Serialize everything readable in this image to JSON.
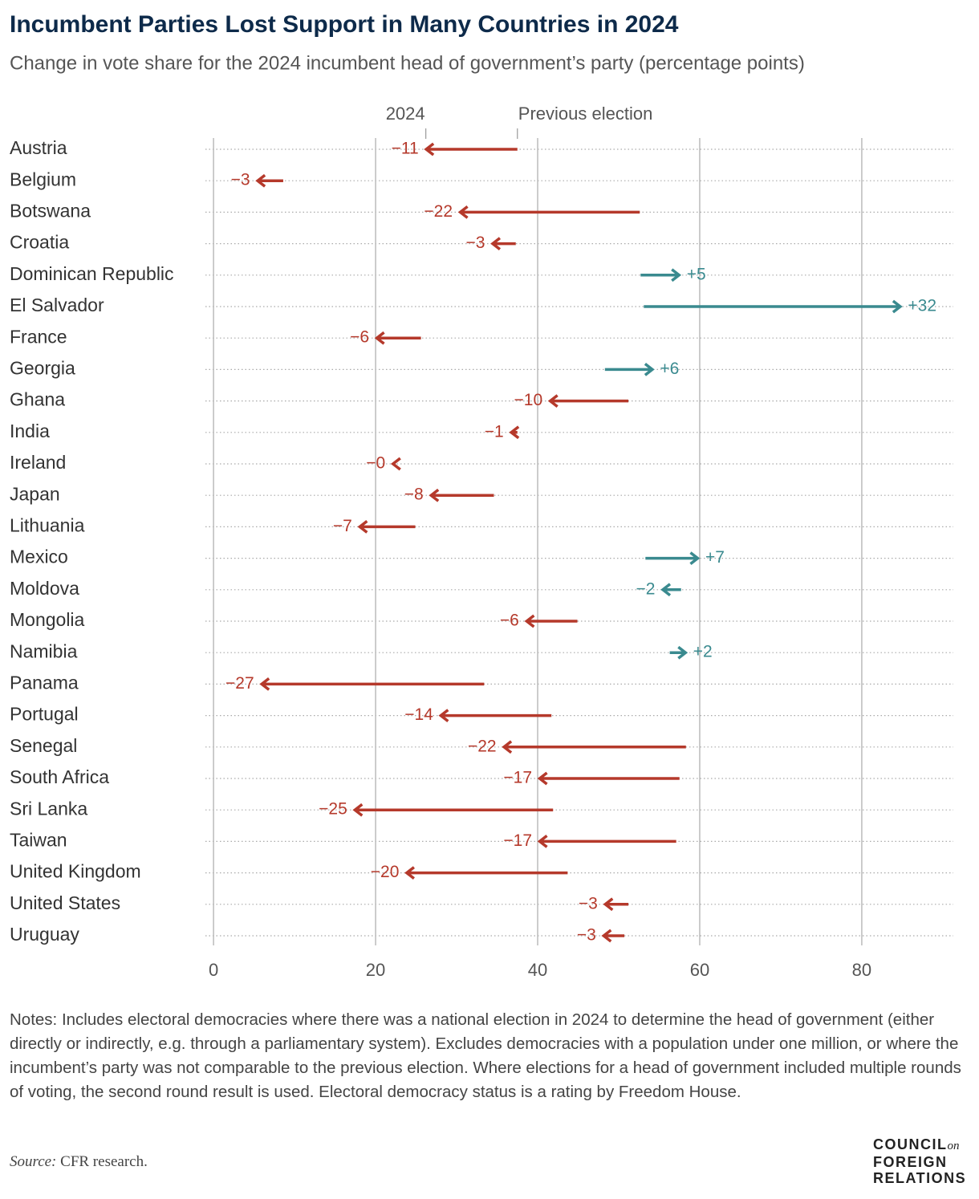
{
  "chart_data": {
    "type": "arrow",
    "title": "Incumbent Parties Lost Support in Many Countries in 2024",
    "subtitle": "Change in vote share for the 2024 incumbent head of government’s party (percentage points)",
    "categories": [
      "Austria",
      "Belgium",
      "Botswana",
      "Croatia",
      "Dominican Republic",
      "El Salvador",
      "France",
      "Georgia",
      "Ghana",
      "India",
      "Ireland",
      "Japan",
      "Lithuania",
      "Mexico",
      "Moldova",
      "Mongolia",
      "Namibia",
      "Panama",
      "Portugal",
      "Senegal",
      "South Africa",
      "Sri Lanka",
      "Taiwan",
      "United Kingdom",
      "United States",
      "Uruguay"
    ],
    "series": [
      {
        "name": "2024",
        "values": [
          26.1,
          5.3,
          30.3,
          34.3,
          57.6,
          84.9,
          20.0,
          54.3,
          41.4,
          36.6,
          22.0,
          26.7,
          17.9,
          59.9,
          55.3,
          38.5,
          58.4,
          5.8,
          27.9,
          35.7,
          40.1,
          17.3,
          40.1,
          23.7,
          48.2,
          48.0
        ]
      },
      {
        "name": "Previous election",
        "values": [
          37.5,
          8.6,
          52.6,
          37.3,
          52.7,
          53.1,
          25.6,
          48.3,
          51.2,
          37.5,
          22.3,
          34.6,
          24.9,
          53.3,
          57.7,
          44.9,
          56.3,
          33.4,
          41.7,
          58.3,
          57.5,
          41.9,
          57.1,
          43.7,
          51.2,
          50.7
        ]
      }
    ],
    "change": {
      "values": [
        -11,
        -3,
        -22,
        -3,
        5,
        32,
        -6,
        6,
        -10,
        -1,
        -0.3,
        -8,
        -7,
        7,
        -2,
        -6,
        2,
        -27,
        -14,
        -22,
        -17,
        -25,
        -17,
        -20,
        -3,
        -3
      ],
      "value_labels": [
        "−11",
        "−3",
        "−22",
        "−3",
        "+5",
        "+32",
        "−6",
        "+6",
        "−10",
        "−1",
        "−0",
        "−8",
        "−7",
        "+7",
        "−2",
        "−6",
        "+2",
        "−27",
        "−14",
        "−22",
        "−17",
        "−25",
        "−17",
        "−20",
        "−3",
        "−3"
      ]
    },
    "colors": [
      "#b5392b",
      "#b5392b",
      "#b5392b",
      "#b5392b",
      "#3a8a8f",
      "#3a8a8f",
      "#b5392b",
      "#3a8a8f",
      "#b5392b",
      "#b5392b",
      "#b5392b",
      "#b5392b",
      "#b5392b",
      "#3a8a8f",
      "#3a8a8f",
      "#b5392b",
      "#3a8a8f",
      "#b5392b",
      "#b5392b",
      "#b5392b",
      "#b5392b",
      "#b5392b",
      "#b5392b",
      "#b5392b",
      "#b5392b",
      "#b5392b"
    ],
    "xlim": [
      -1,
      91
    ],
    "xticks": [
      0,
      20,
      40,
      60,
      80
    ],
    "grid": true
  },
  "notes": "Notes: Includes electoral democracies where there was a national election in 2024 to determine the head of government (either directly or indirectly, e.g. through a parliamentary system). Excludes democracies with a population under one million, or where the incumbent’s party was not comparable to the previous election. Where elections for a head of government included multiple rounds of voting, the second round result is used. Electoral democracy status is a rating by Freedom House.",
  "source_label": "Source:",
  "source": "CFR research.",
  "logo": [
    "COUNCIL",
    "on",
    "FOREIGN",
    "RELATIONS"
  ]
}
